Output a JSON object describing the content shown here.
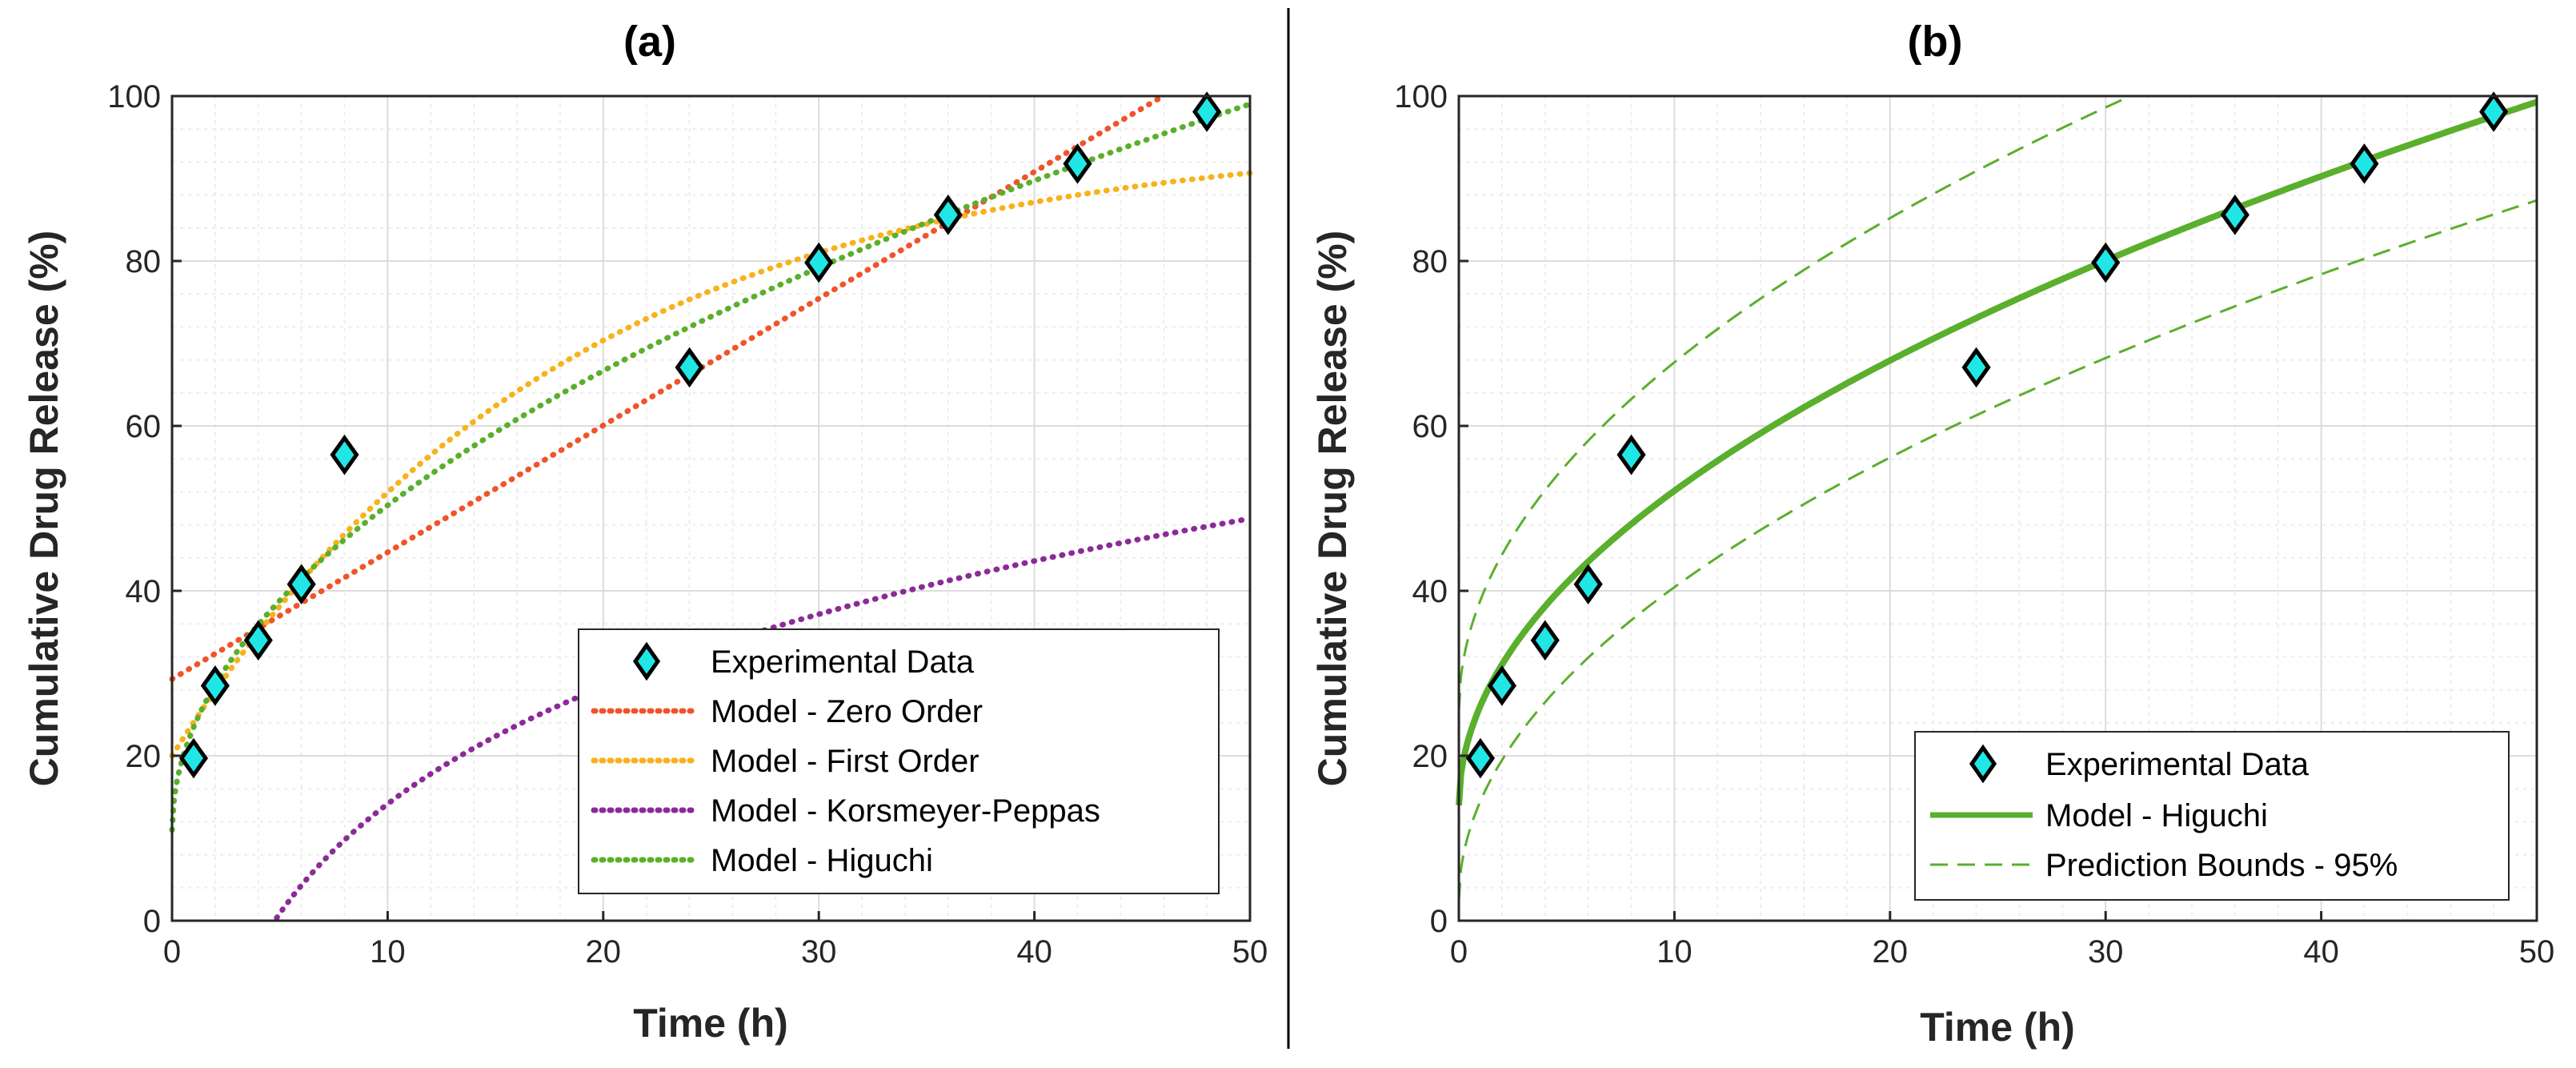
{
  "figure": {
    "panels": [
      "a",
      "b"
    ]
  },
  "colors": {
    "zero": "#f0542a",
    "first": "#f7b21c",
    "kp": "#8b2b98",
    "higuchi": "#5aaf2c",
    "marker_fill": "#21e6e6",
    "marker_edge": "#000000",
    "axis": "#262626",
    "grid_major": "#dcdcdc",
    "grid_minor": "#ececec"
  },
  "chart_data": [
    {
      "id": "a",
      "type": "line",
      "title": "(a)",
      "xlabel": "Time (h)",
      "ylabel": "Cumulative Drug Release (%)",
      "xlim": [
        0,
        50
      ],
      "ylim": [
        0,
        100
      ],
      "xticks": [
        0,
        10,
        20,
        30,
        40,
        50
      ],
      "yticks": [
        0,
        20,
        40,
        60,
        80,
        100
      ],
      "grid": "on (major and minor)",
      "legend_position": "bottom-right",
      "experimental": {
        "name": "Experimental Data",
        "x": [
          1,
          2,
          4,
          6,
          8,
          24,
          30,
          36,
          42,
          48
        ],
        "y": [
          19.7,
          28.5,
          34.0,
          40.8,
          56.5,
          67.1,
          79.8,
          85.6,
          91.8,
          98.1
        ]
      },
      "models": [
        {
          "key": "zero",
          "name": "Model - Zero Order",
          "style": "dotted",
          "equation": "29.3 + 1.538*t",
          "params": {
            "a": 29.3,
            "b": 1.538
          }
        },
        {
          "key": "first",
          "name": "Model - First Order",
          "style": "dotted",
          "equation": "95.5 - 75.5*exp(-0.055*t)",
          "params": {
            "qinf": 95.5,
            "q0": 20.0,
            "k": 0.055
          }
        },
        {
          "key": "kp",
          "name": "Model - Korsmeyer-Peppas",
          "style": "dotted",
          "equation": "-184 + 157.4*t^0.10",
          "params": {
            "c": -184,
            "k": 157.4,
            "n": 0.1
          }
        },
        {
          "key": "higuchi",
          "name": "Model - Higuchi",
          "style": "dotted",
          "equation": "11.0 + 12.45*sqrt(t)",
          "params": {
            "a": 11.0,
            "k": 12.45
          }
        }
      ]
    },
    {
      "id": "b",
      "type": "line",
      "title": "(b)",
      "xlabel": "Time (h)",
      "ylabel": "Cumulative Drug Release (%)",
      "xlim": [
        0,
        50
      ],
      "ylim": [
        0,
        100
      ],
      "xticks": [
        0,
        10,
        20,
        30,
        40,
        50
      ],
      "yticks": [
        0,
        20,
        40,
        60,
        80,
        100
      ],
      "grid": "on (major and minor)",
      "legend_position": "bottom-right",
      "experimental": {
        "name": "Experimental Data",
        "x": [
          1,
          2,
          4,
          6,
          8,
          24,
          30,
          36,
          42,
          48
        ],
        "y": [
          19.7,
          28.5,
          34.0,
          40.8,
          56.5,
          67.1,
          79.8,
          85.6,
          91.8,
          98.1
        ]
      },
      "model": {
        "key": "higuchi",
        "name": "Model - Higuchi",
        "style": "solid",
        "equation": "14.0 + 12.06*sqrt(t)",
        "params": {
          "a": 14.0,
          "k": 12.06
        }
      },
      "bounds": {
        "name": "Prediction Bounds - 95%",
        "style": "dashed",
        "upper": {
          "a": 25.5,
          "k": 13.35
        },
        "lower": {
          "a": 2.5,
          "k": 12.0
        }
      }
    }
  ]
}
